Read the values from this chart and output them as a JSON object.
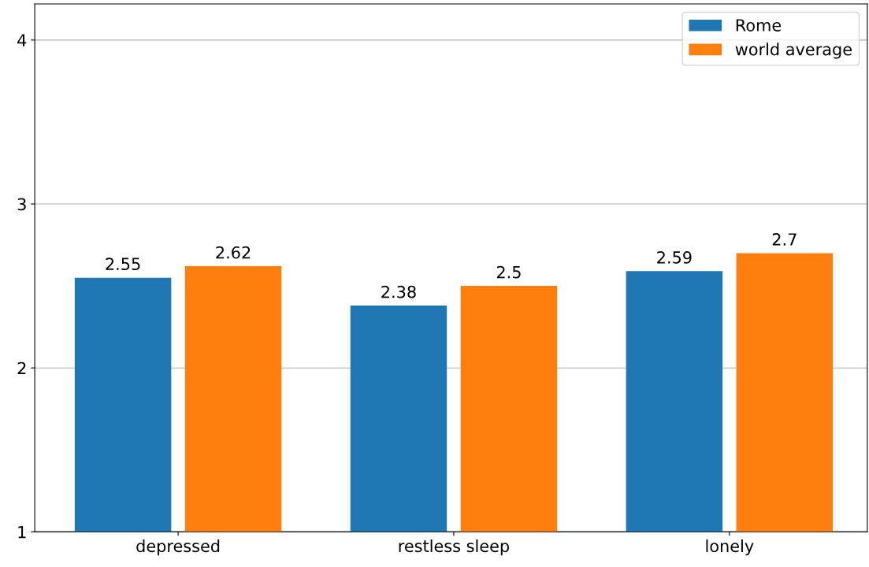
{
  "chart_data": {
    "type": "bar",
    "categories": [
      "depressed",
      "restless sleep",
      "lonely"
    ],
    "series": [
      {
        "name": "Rome",
        "color": "#1f77b4",
        "values": [
          2.55,
          2.38,
          2.59
        ]
      },
      {
        "name": "world average",
        "color": "#ff7f0e",
        "values": [
          2.62,
          2.5,
          2.7
        ]
      }
    ],
    "ylim": [
      1,
      4.22
    ],
    "yticks": [
      1,
      2,
      3,
      4
    ],
    "grid": "y",
    "legend": "top right",
    "data_labels": true
  }
}
